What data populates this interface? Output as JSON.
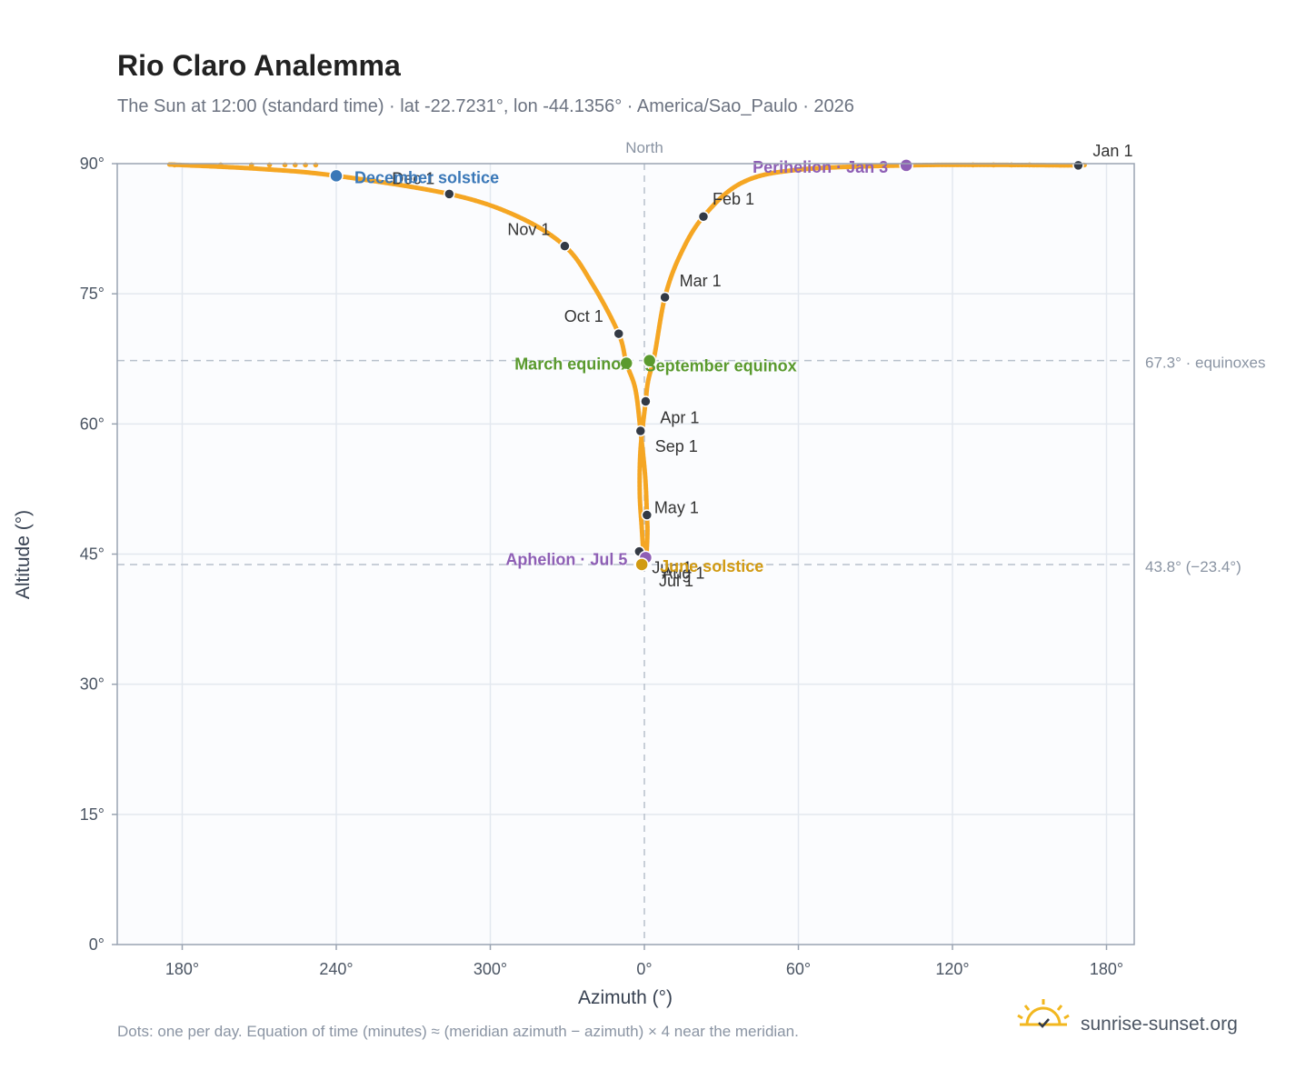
{
  "title": "Rio Claro Analemma",
  "subtitle": "The Sun at 12:00 (standard time) · lat -22.7231°, lon -44.1356° · America/Sao_Paulo · 2026",
  "footnote": "Dots: one per day. Equation of time (minutes) ≈ (meridian azimuth − azimuth) × 4 near the meridian.",
  "brand": "sunrise-sunset.org",
  "colors": {
    "curve": "#f5a623",
    "month": "#333a45",
    "december": "#3a78b8",
    "perihelion": "#8e5fb5",
    "equinox": "#5a9a2e",
    "june": "#d19a12",
    "grid": "#e3e8ef",
    "reference": "#b8c0cc",
    "plot_bg": "#fbfcfe",
    "frame": "#9aa4b2"
  },
  "chart_data": {
    "type": "scatter",
    "xlabel": "Azimuth (°)",
    "ylabel": "Altitude (°)",
    "x_ticks": [
      "180°",
      "240°",
      "300°",
      "0°",
      "60°",
      "120°",
      "180°"
    ],
    "y_ticks": [
      "0°",
      "15°",
      "30°",
      "45°",
      "60°",
      "75°",
      "90°"
    ],
    "ylim": [
      0,
      90
    ],
    "meridian_label": "North",
    "grid": true,
    "series_note": "x values are azimuths in degrees measured from North; values west of North are shown as negative offsets",
    "reference_lines": [
      {
        "altitude": 67.3,
        "label": "67.3° · equinoxes"
      },
      {
        "altitude": 43.8,
        "label": "43.8° (−23.4°)"
      }
    ],
    "monthly_points": [
      {
        "label": "Jan 1",
        "x": 169,
        "y": 89.8
      },
      {
        "label": "Feb 1",
        "x": 23,
        "y": 83.9
      },
      {
        "label": "Mar 1",
        "x": 8,
        "y": 74.6
      },
      {
        "label": "Apr 1",
        "x": 0.5,
        "y": 62.6
      },
      {
        "label": "May 1",
        "x": 1,
        "y": 49.5
      },
      {
        "label": "Jun 1",
        "x": -2,
        "y": 45.3
      },
      {
        "label": "Jul 1",
        "x": 0,
        "y": 44.4
      },
      {
        "label": "Aug 1",
        "x": 0.5,
        "y": 44.6
      },
      {
        "label": "Sep 1",
        "x": -1.5,
        "y": 59.2
      },
      {
        "label": "Oct 1",
        "x": -10,
        "y": 70.4
      },
      {
        "label": "Nov 1",
        "x": -31,
        "y": 80.5
      },
      {
        "label": "Dec 1",
        "x": -76,
        "y": 86.5
      }
    ],
    "events": [
      {
        "label": "December solstice",
        "x": -120,
        "y": 88.6
      },
      {
        "label": "Perihelion · Jan 3",
        "x": 102,
        "y": 89.8
      },
      {
        "label": "March equinox",
        "x": -7,
        "y": 67.0
      },
      {
        "label": "September equinox",
        "x": 2,
        "y": 67.3
      },
      {
        "label": "Aphelion · Jul 5",
        "x": 0.5,
        "y": 44.6
      },
      {
        "label": "June solstice",
        "x": -1,
        "y": 43.8
      }
    ]
  }
}
